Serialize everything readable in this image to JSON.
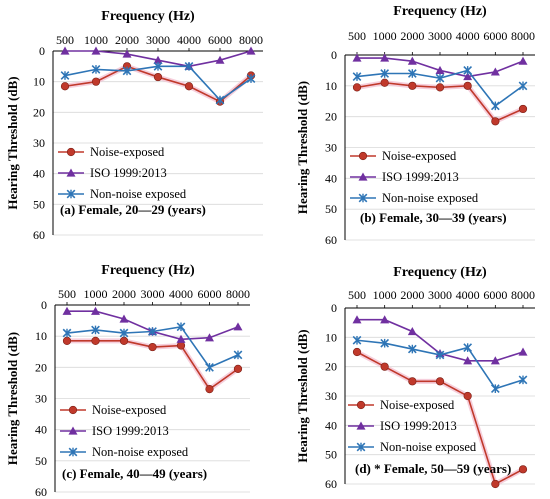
{
  "chart_data": [
    {
      "type": "line",
      "title": "Frequency (Hz)",
      "ylabel": "Hearing Threshold (dB)",
      "caption": "(a) Female, 20—29 (years)",
      "categories": [
        "500",
        "1000",
        "2000",
        "3000",
        "4000",
        "6000",
        "8000"
      ],
      "y_ticks": [
        "0",
        "10",
        "20",
        "30",
        "40",
        "50",
        "60"
      ],
      "ylim": [
        0,
        60
      ],
      "y_inverted": true,
      "grid": "horizontal",
      "legend_position": "lower-left inside",
      "series": [
        {
          "name": "Noise-exposed",
          "marker": "circle",
          "color": "#c0392b",
          "values": [
            11.5,
            10,
            5,
            8.5,
            11.5,
            16.5,
            8
          ]
        },
        {
          "name": "ISO 1999:2013",
          "marker": "triangle",
          "color": "#7030a0",
          "values": [
            0,
            0,
            1,
            3,
            5,
            3,
            0
          ]
        },
        {
          "name": "Non-noise exposed",
          "marker": "asterisk",
          "color": "#2e75b6",
          "values": [
            8,
            6,
            6.5,
            5,
            5,
            16,
            9
          ]
        }
      ]
    },
    {
      "type": "line",
      "title": "Frequency (Hz)",
      "ylabel": "Hearing Threshold (dB)",
      "caption": "(b) Female, 30—39 (years)",
      "categories": [
        "500",
        "1000",
        "2000",
        "3000",
        "4000",
        "6000",
        "8000"
      ],
      "y_ticks": [
        "0",
        "10",
        "20",
        "30",
        "40",
        "50",
        "60"
      ],
      "ylim": [
        0,
        60
      ],
      "y_inverted": true,
      "grid": "horizontal",
      "legend_position": "lower-left inside",
      "series": [
        {
          "name": "Noise-exposed",
          "marker": "circle",
          "color": "#c0392b",
          "values": [
            10.5,
            9,
            10,
            10.5,
            10,
            21.5,
            17.5
          ]
        },
        {
          "name": "ISO 1999:2013",
          "marker": "triangle",
          "color": "#7030a0",
          "values": [
            1,
            1,
            2,
            5,
            7,
            5.5,
            2
          ]
        },
        {
          "name": "Non-noise exposed",
          "marker": "asterisk",
          "color": "#2e75b6",
          "values": [
            7,
            6,
            6,
            7.5,
            5,
            16.5,
            10
          ]
        }
      ]
    },
    {
      "type": "line",
      "title": "Frequency (Hz)",
      "ylabel": "Hearing Threshold (dB)",
      "caption": "(c) Female, 40—49 (years)",
      "categories": [
        "500",
        "1000",
        "2000",
        "3000",
        "4000",
        "6000",
        "8000"
      ],
      "y_ticks": [
        "0",
        "10",
        "20",
        "30",
        "40",
        "50",
        "60"
      ],
      "ylim": [
        0,
        60
      ],
      "y_inverted": true,
      "grid": "horizontal",
      "legend_position": "lower-left inside",
      "series": [
        {
          "name": "Noise-exposed",
          "marker": "circle",
          "color": "#c0392b",
          "values": [
            11.5,
            11.5,
            11.5,
            13.5,
            13,
            27,
            20.5
          ]
        },
        {
          "name": "ISO 1999:2013",
          "marker": "triangle",
          "color": "#7030a0",
          "values": [
            2,
            2,
            4.5,
            8.5,
            11,
            10.5,
            7
          ]
        },
        {
          "name": "Non-noise exposed",
          "marker": "asterisk",
          "color": "#2e75b6",
          "values": [
            9,
            8,
            9,
            8.5,
            7,
            20,
            16
          ]
        }
      ]
    },
    {
      "type": "line",
      "title": "Frequency (Hz)",
      "ylabel": "Hearing Threshold (dB)",
      "caption": "(d) * Female, 50—59 (years)",
      "categories": [
        "500",
        "1000",
        "2000",
        "3000",
        "4000",
        "6000",
        "8000"
      ],
      "y_ticks": [
        "0",
        "10",
        "20",
        "30",
        "40",
        "50",
        "60"
      ],
      "ylim": [
        0,
        60
      ],
      "y_inverted": true,
      "grid": "horizontal",
      "legend_position": "lower-left inside",
      "series": [
        {
          "name": "Noise-exposed",
          "marker": "circle",
          "color": "#c0392b",
          "values": [
            15,
            20,
            25,
            25,
            30,
            60,
            55
          ]
        },
        {
          "name": "ISO 1999:2013",
          "marker": "triangle",
          "color": "#7030a0",
          "values": [
            4,
            4,
            8,
            15.5,
            18,
            18,
            15
          ]
        },
        {
          "name": "Non-noise exposed",
          "marker": "asterisk",
          "color": "#2e75b6",
          "values": [
            11,
            12,
            14,
            16,
            13.5,
            27.5,
            24.5
          ]
        }
      ]
    }
  ]
}
